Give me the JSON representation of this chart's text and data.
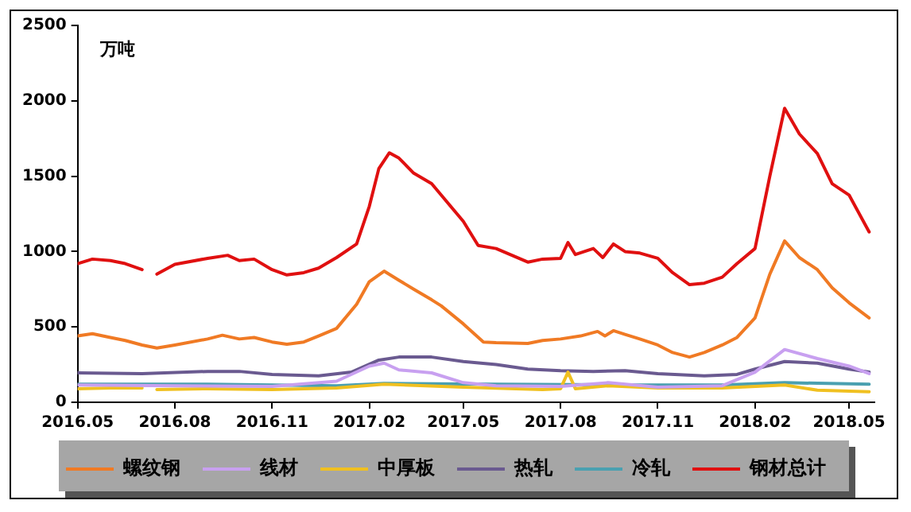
{
  "chart_data": {
    "type": "line",
    "ylabel": "万吨",
    "xlim": [
      "2016-05-01",
      "2018-05-25"
    ],
    "ylim": [
      0,
      2500
    ],
    "yticks": [
      0,
      500,
      1000,
      1500,
      2000,
      2500
    ],
    "xticks": [
      {
        "value": "2016-05-01",
        "label": "2016.05"
      },
      {
        "value": "2016-08-01",
        "label": "2016.08"
      },
      {
        "value": "2016-11-01",
        "label": "2016.11"
      },
      {
        "value": "2017-02-01",
        "label": "2017.02"
      },
      {
        "value": "2017-05-01",
        "label": "2017.05"
      },
      {
        "value": "2017-08-01",
        "label": "2017.08"
      },
      {
        "value": "2017-11-01",
        "label": "2017.11"
      },
      {
        "value": "2018-02-01",
        "label": "2018.02"
      },
      {
        "value": "2018-05-01",
        "label": "2018.05"
      }
    ],
    "grid": false,
    "legend": "bottom",
    "marker": "none",
    "line_style": "solid",
    "series": [
      {
        "name": "螺纹钢",
        "color": "#f07a24",
        "x": [
          "2016-05-01",
          "2016-05-15",
          "2016-06-01",
          "2016-06-15",
          "2016-07-01",
          "2016-07-15",
          "2016-08-01",
          "2016-09-01",
          "2016-09-15",
          "2016-10-01",
          "2016-10-15",
          "2016-11-01",
          "2016-11-15",
          "2016-12-01",
          "2016-12-15",
          "2017-01-01",
          "2017-01-20",
          "2017-02-01",
          "2017-02-15",
          "2017-03-01",
          "2017-03-15",
          "2017-04-01",
          "2017-04-10",
          "2017-05-01",
          "2017-05-20",
          "2017-06-01",
          "2017-07-01",
          "2017-07-15",
          "2017-08-01",
          "2017-08-20",
          "2017-09-05",
          "2017-09-12",
          "2017-09-20",
          "2017-10-01",
          "2017-10-15",
          "2017-11-01",
          "2017-11-15",
          "2017-12-01",
          "2017-12-15",
          "2018-01-01",
          "2018-01-15",
          "2018-02-01",
          "2018-02-15",
          "2018-03-01",
          "2018-03-15",
          "2018-04-01",
          "2018-04-15",
          "2018-05-01",
          "2018-05-20"
        ],
        "values": [
          440,
          455,
          430,
          410,
          380,
          360,
          380,
          420,
          445,
          420,
          430,
          400,
          385,
          400,
          440,
          490,
          650,
          800,
          870,
          810,
          750,
          680,
          640,
          520,
          400,
          395,
          390,
          410,
          420,
          440,
          470,
          440,
          475,
          450,
          420,
          380,
          330,
          300,
          330,
          380,
          430,
          560,
          850,
          1070,
          960,
          880,
          760,
          660,
          560
        ]
      },
      {
        "name": "线材",
        "color": "#c8a0f0",
        "x": [
          "2016-05-01",
          "2016-08-01",
          "2016-11-01",
          "2017-01-01",
          "2017-02-01",
          "2017-02-15",
          "2017-03-01",
          "2017-04-01",
          "2017-05-01",
          "2017-06-01",
          "2017-08-01",
          "2017-09-15",
          "2017-11-01",
          "2018-01-01",
          "2018-02-01",
          "2018-03-01",
          "2018-04-01",
          "2018-05-01",
          "2018-05-20"
        ],
        "values": [
          115,
          110,
          105,
          140,
          240,
          260,
          215,
          195,
          130,
          110,
          105,
          130,
          100,
          110,
          200,
          350,
          290,
          240,
          190
        ]
      },
      {
        "name": "中厚板",
        "color": "#f0c020",
        "x": [
          "2016-05-01",
          "2016-06-01",
          "2016-07-01",
          "2016-07-08",
          "2016-07-15",
          "2016-09-01",
          "2016-11-01",
          "2017-01-01",
          "2017-02-15",
          "2017-05-01",
          "2017-07-15",
          "2017-08-01",
          "2017-08-08",
          "2017-08-15",
          "2017-09-15",
          "2017-11-01",
          "2018-01-01",
          "2018-03-01",
          "2018-04-01",
          "2018-05-20"
        ],
        "values": [
          90,
          95,
          95,
          null,
          85,
          90,
          85,
          95,
          120,
          100,
          85,
          90,
          200,
          90,
          110,
          95,
          95,
          115,
          80,
          70
        ]
      },
      {
        "name": "热轧",
        "color": "#6a5a90",
        "x": [
          "2016-05-01",
          "2016-07-01",
          "2016-09-01",
          "2016-10-01",
          "2016-11-01",
          "2016-12-15",
          "2017-01-15",
          "2017-02-10",
          "2017-03-01",
          "2017-04-01",
          "2017-05-01",
          "2017-06-01",
          "2017-07-01",
          "2017-08-01",
          "2017-09-01",
          "2017-10-01",
          "2017-11-01",
          "2017-12-15",
          "2018-01-15",
          "2018-02-01",
          "2018-03-01",
          "2018-04-01",
          "2018-05-01",
          "2018-05-20"
        ],
        "values": [
          195,
          190,
          205,
          205,
          185,
          175,
          200,
          280,
          300,
          300,
          270,
          250,
          220,
          210,
          205,
          210,
          190,
          175,
          185,
          220,
          270,
          260,
          220,
          200
        ]
      },
      {
        "name": "冷轧",
        "color": "#4aa0b0",
        "x": [
          "2016-05-01",
          "2016-09-01",
          "2017-01-01",
          "2017-02-15",
          "2017-06-01",
          "2017-10-01",
          "2018-01-01",
          "2018-03-01",
          "2018-05-20"
        ],
        "values": [
          120,
          120,
          110,
          125,
          120,
          115,
          115,
          130,
          120
        ]
      },
      {
        "name": "钢材总计",
        "color": "#e01010",
        "x": [
          "2016-05-01",
          "2016-05-15",
          "2016-06-01",
          "2016-06-15",
          "2016-07-01",
          "2016-07-08",
          "2016-07-15",
          "2016-08-01",
          "2016-09-01",
          "2016-09-20",
          "2016-10-01",
          "2016-10-15",
          "2016-11-01",
          "2016-11-15",
          "2016-12-01",
          "2016-12-15",
          "2017-01-01",
          "2017-01-20",
          "2017-02-01",
          "2017-02-10",
          "2017-02-20",
          "2017-03-01",
          "2017-03-15",
          "2017-04-01",
          "2017-04-10",
          "2017-05-01",
          "2017-05-15",
          "2017-06-01",
          "2017-07-01",
          "2017-07-15",
          "2017-08-01",
          "2017-08-08",
          "2017-08-15",
          "2017-09-01",
          "2017-09-10",
          "2017-09-20",
          "2017-10-01",
          "2017-10-15",
          "2017-11-01",
          "2017-11-15",
          "2017-12-01",
          "2017-12-15",
          "2018-01-01",
          "2018-01-15",
          "2018-02-01",
          "2018-02-15",
          "2018-03-01",
          "2018-03-15",
          "2018-04-01",
          "2018-04-15",
          "2018-05-01",
          "2018-05-20"
        ],
        "values": [
          920,
          950,
          940,
          920,
          880,
          null,
          850,
          915,
          955,
          975,
          940,
          950,
          880,
          845,
          860,
          890,
          960,
          1050,
          1300,
          1550,
          1655,
          1620,
          1520,
          1450,
          1375,
          1200,
          1040,
          1020,
          930,
          950,
          955,
          1060,
          980,
          1020,
          960,
          1050,
          1000,
          990,
          955,
          860,
          780,
          790,
          830,
          920,
          1020,
          1500,
          1950,
          1780,
          1650,
          1450,
          1375,
          1130
        ]
      }
    ]
  }
}
